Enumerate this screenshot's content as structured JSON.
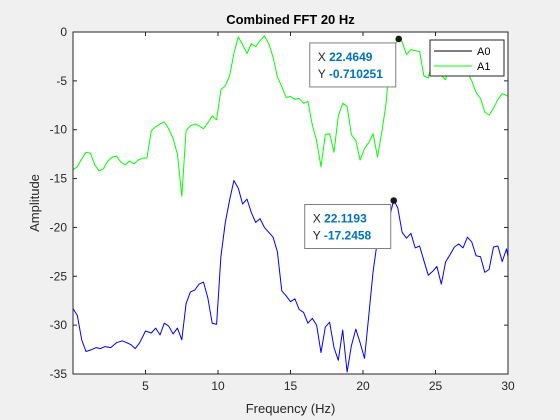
{
  "chart_data": {
    "type": "line",
    "title": "Combined FFT 20 Hz",
    "xlabel": "Frequency (Hz)",
    "ylabel": "Amplitude",
    "xlim": [
      0,
      30
    ],
    "ylim": [
      -35,
      0
    ],
    "xticks": [
      5,
      10,
      15,
      20,
      25,
      30
    ],
    "yticks": [
      0,
      -5,
      -10,
      -15,
      -20,
      -25,
      -30,
      -35
    ],
    "grid": false,
    "legend_position": "top-right",
    "series": [
      {
        "name": "A0",
        "legend_color": "#000000",
        "color": "#0000ff",
        "x": [
          0.0,
          0.3,
          0.6,
          0.9,
          1.1,
          1.3,
          1.6,
          1.9,
          2.2,
          2.6,
          3.0,
          3.4,
          3.7,
          4.0,
          4.3,
          4.6,
          5.0,
          5.4,
          5.7,
          6.0,
          6.3,
          6.6,
          6.9,
          7.2,
          7.5,
          7.8,
          8.1,
          8.4,
          8.7,
          9.0,
          9.3,
          9.6,
          9.9,
          10.2,
          10.5,
          10.8,
          11.1,
          11.4,
          11.7,
          12.0,
          12.3,
          12.6,
          12.9,
          13.2,
          13.5,
          13.8,
          14.1,
          14.4,
          14.7,
          15.0,
          15.3,
          15.6,
          15.9,
          16.2,
          16.5,
          16.8,
          17.1,
          17.4,
          17.7,
          18.0,
          18.3,
          18.6,
          18.9,
          19.2,
          19.5,
          19.8,
          20.1,
          20.4,
          20.7,
          21.0,
          21.3,
          21.6,
          21.9,
          22.12,
          22.4,
          22.7,
          23.0,
          23.3,
          23.6,
          23.9,
          24.2,
          24.5,
          24.8,
          25.1,
          25.4,
          25.7,
          26.0,
          26.3,
          26.6,
          26.9,
          27.2,
          27.5,
          27.8,
          28.1,
          28.4,
          28.7,
          29.0,
          29.3,
          29.6,
          29.9,
          30.0
        ],
        "y": [
          -28.3,
          -29.0,
          -31.5,
          -32.7,
          -32.6,
          -32.5,
          -32.3,
          -32.4,
          -32.2,
          -32.3,
          -31.8,
          -31.6,
          -31.8,
          -32.0,
          -32.4,
          -31.8,
          -30.6,
          -30.8,
          -30.3,
          -31.0,
          -29.8,
          -30.1,
          -30.9,
          -30.3,
          -31.5,
          -27.8,
          -26.6,
          -26.4,
          -25.8,
          -25.6,
          -27.2,
          -29.8,
          -29.9,
          -23.0,
          -19.5,
          -17.2,
          -15.2,
          -16.0,
          -17.6,
          -17.1,
          -18.5,
          -19.5,
          -19.1,
          -20.0,
          -20.5,
          -21.0,
          -22.5,
          -26.5,
          -27.0,
          -27.6,
          -27.3,
          -28.4,
          -28.7,
          -29.8,
          -29.3,
          -30.0,
          -32.8,
          -30.2,
          -29.7,
          -32.3,
          -33.6,
          -30.5,
          -34.8,
          -32.1,
          -30.4,
          -31.8,
          -33.4,
          -29.0,
          -24.5,
          -21.3,
          -20.0,
          -19.0,
          -18.5,
          -17.2,
          -18.0,
          -20.5,
          -21.1,
          -20.6,
          -22.1,
          -21.9,
          -23.4,
          -24.9,
          -24.5,
          -24.0,
          -25.8,
          -23.5,
          -22.8,
          -22.0,
          -21.7,
          -22.1,
          -21.0,
          -21.5,
          -22.9,
          -23.0,
          -24.6,
          -24.3,
          -22.0,
          -21.9,
          -23.5,
          -22.2,
          -23.0
        ]
      },
      {
        "name": "A1",
        "legend_color": "#00ff00",
        "color": "#00ff00",
        "x": [
          0.0,
          0.3,
          0.6,
          0.9,
          1.2,
          1.5,
          1.8,
          2.1,
          2.4,
          2.7,
          3.0,
          3.3,
          3.6,
          3.9,
          4.2,
          4.5,
          4.8,
          5.1,
          5.4,
          5.7,
          6.0,
          6.3,
          6.6,
          6.9,
          7.2,
          7.5,
          7.8,
          8.1,
          8.4,
          8.7,
          9.0,
          9.3,
          9.6,
          9.9,
          10.2,
          10.5,
          10.8,
          11.1,
          11.4,
          11.7,
          12.0,
          12.3,
          12.6,
          12.9,
          13.2,
          13.5,
          13.8,
          14.1,
          14.4,
          14.7,
          15.0,
          15.3,
          15.6,
          15.9,
          16.2,
          16.5,
          16.8,
          17.1,
          17.4,
          17.7,
          18.0,
          18.3,
          18.6,
          18.9,
          19.2,
          19.5,
          19.8,
          20.1,
          20.4,
          20.7,
          21.0,
          21.3,
          21.6,
          21.9,
          22.2,
          22.46,
          22.7,
          23.0,
          23.3,
          23.6,
          23.9,
          24.2,
          24.5,
          24.8,
          25.1,
          25.4,
          25.7,
          26.0,
          26.3,
          26.6,
          26.9,
          27.2,
          27.5,
          27.8,
          28.1,
          28.4,
          28.7,
          29.0,
          29.3,
          29.6,
          29.9,
          30.0
        ],
        "y": [
          -14.1,
          -13.8,
          -13.0,
          -12.3,
          -12.4,
          -13.6,
          -14.2,
          -14.0,
          -13.2,
          -12.8,
          -12.7,
          -13.3,
          -13.6,
          -13.2,
          -13.5,
          -13.1,
          -12.9,
          -12.9,
          -10.1,
          -9.7,
          -9.4,
          -9.2,
          -9.9,
          -10.9,
          -12.5,
          -16.8,
          -10.1,
          -9.6,
          -9.4,
          -9.6,
          -9.9,
          -9.3,
          -8.6,
          -9.0,
          -5.9,
          -5.5,
          -4.5,
          -2.2,
          -0.5,
          -1.3,
          -2.2,
          -1.2,
          -1.5,
          -0.9,
          -0.4,
          -1.2,
          -2.6,
          -4.6,
          -5.6,
          -6.7,
          -6.6,
          -6.9,
          -6.8,
          -7.3,
          -7.1,
          -9.5,
          -11.1,
          -13.8,
          -10.5,
          -10.4,
          -12.3,
          -8.6,
          -7.3,
          -7.6,
          -10.5,
          -11.1,
          -13.1,
          -11.9,
          -11.3,
          -10.4,
          -12.8,
          -10.2,
          -7.2,
          -1.6,
          -1.3,
          -0.7,
          -1.0,
          -2.3,
          -1.8,
          -1.9,
          -2.0,
          -4.5,
          -4.7,
          -2.8,
          -3.2,
          -4.4,
          -4.9,
          -2.0,
          -1.6,
          -2.9,
          -4.3,
          -4.1,
          -5.0,
          -6.2,
          -6.8,
          -8.2,
          -8.5,
          -7.8,
          -6.9,
          -6.3,
          -6.5,
          -6.6
        ]
      }
    ],
    "datatips": [
      {
        "x_label": "X",
        "x_value": "22.4649",
        "y_label": "Y",
        "y_value": "-0.710251",
        "point_x": 22.4649,
        "point_y": -0.710251,
        "placement": "left-below"
      },
      {
        "x_label": "X",
        "x_value": "22.1193",
        "y_label": "Y",
        "y_value": "-17.2458",
        "point_x": 22.1193,
        "point_y": -17.2458,
        "placement": "left-below"
      }
    ],
    "colors": {
      "value_text": "#0072bd",
      "axis": "#262626",
      "background": "#ffffff",
      "figure": "#f0f0f0"
    }
  }
}
